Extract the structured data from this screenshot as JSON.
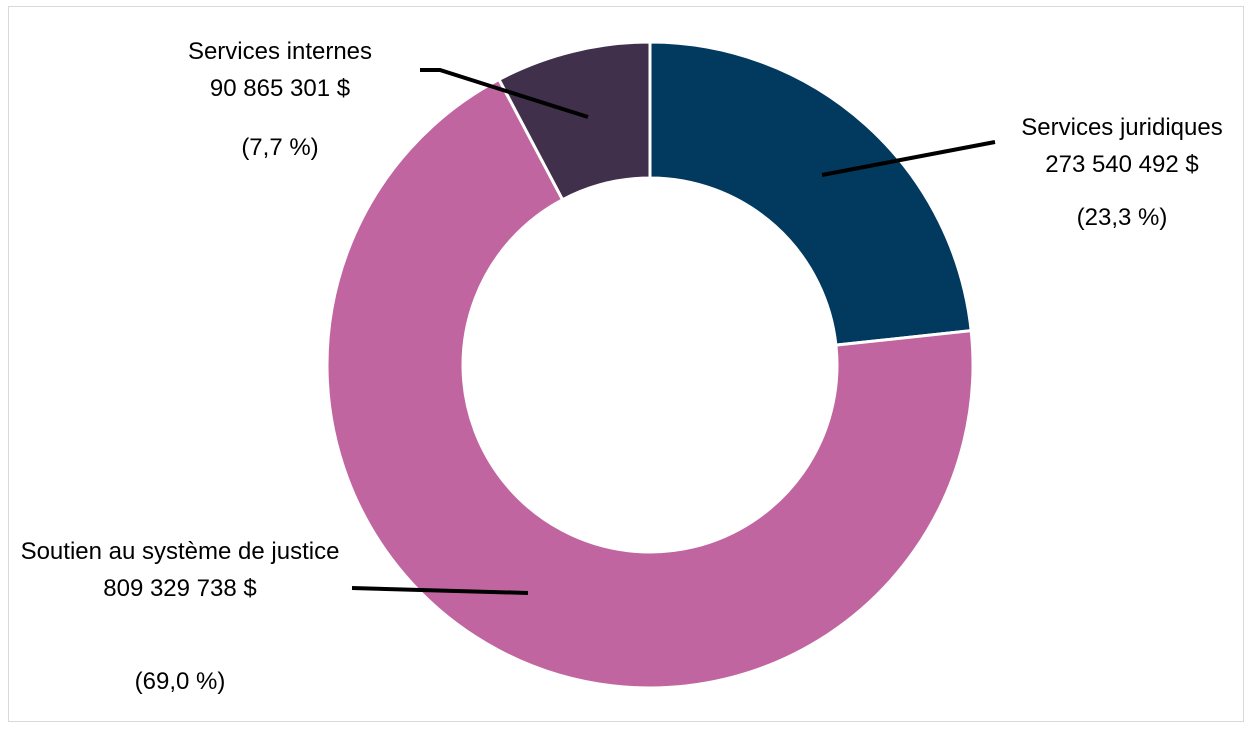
{
  "chart_data": {
    "type": "pie",
    "categories": [
      "Services juridiques",
      "Soutien au système de justice",
      "Services internes"
    ],
    "values": [
      273540492,
      809329738,
      90865301
    ],
    "value_labels": [
      "273 540 492 $",
      "809 329 738 $",
      "90 865 301 $"
    ],
    "percentages": [
      23.3,
      69.0,
      7.7
    ],
    "percentage_labels": [
      "(23,3 %)",
      "(69,0 %)",
      "(7,7 %)"
    ],
    "colors": [
      "#023a5f",
      "#c065a0",
      "#41304b"
    ]
  }
}
